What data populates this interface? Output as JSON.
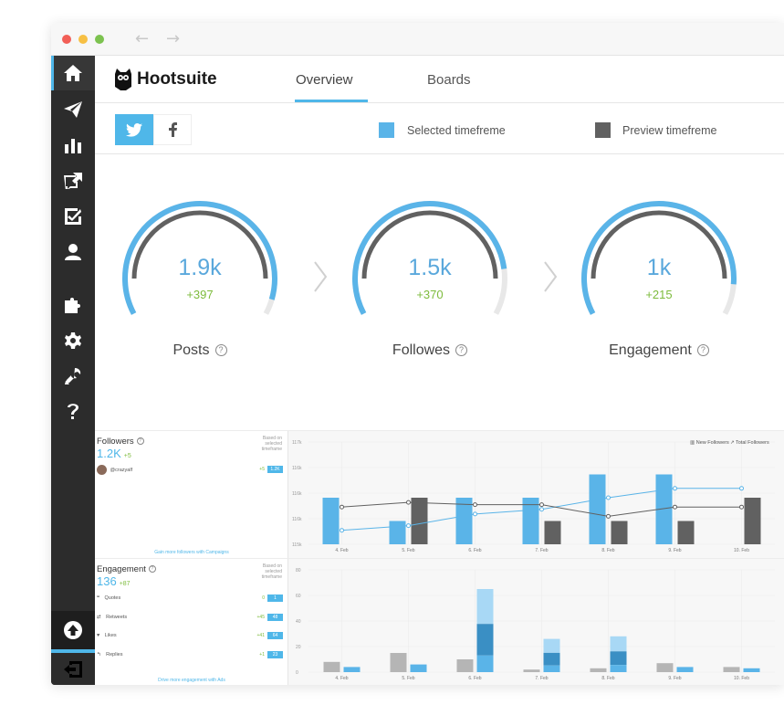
{
  "brand": {
    "name": "Hootsuite"
  },
  "tabs": [
    {
      "label": "Overview",
      "active": true
    },
    {
      "label": "Boards",
      "active": false
    }
  ],
  "networks": [
    "twitter-icon",
    "facebook-icon"
  ],
  "legend": {
    "selected": {
      "label": "Selected timefreme",
      "color": "#5ab4e8"
    },
    "preview": {
      "label": "Preview timefreme",
      "color": "#616161"
    }
  },
  "gauges": [
    {
      "value": "1.9k",
      "delta": "+397",
      "label": "Posts",
      "fill": 0.95
    },
    {
      "value": "1.5k",
      "delta": "+370",
      "label": "Followes",
      "fill": 0.85
    },
    {
      "value": "1k",
      "delta": "+215",
      "label": "Engagement",
      "fill": 0.9
    }
  ],
  "followers_card": {
    "title": "Followers",
    "sub": "Based on selected timeframe",
    "value": "1.2K",
    "delta": "+5",
    "user": {
      "handle": "@crazyalf",
      "delta": "+5",
      "count": "1.2K"
    },
    "footer": "Gain more followers with Campaigns"
  },
  "engagement_card": {
    "title": "Engagement",
    "sub": "Based on selected timeframe",
    "value": "136",
    "delta": "+87",
    "items": [
      {
        "label": "Quotes",
        "delta": "0",
        "count": "1"
      },
      {
        "label": "Retweets",
        "delta": "+45",
        "count": "48"
      },
      {
        "label": "Likes",
        "delta": "+41",
        "count": "64"
      },
      {
        "label": "Replies",
        "delta": "+1",
        "count": "23"
      }
    ],
    "footer": "Drive more engagement with Ads"
  },
  "chart_data": [
    {
      "type": "bar",
      "title": "",
      "legend": [
        "New Followers",
        "Total Followers"
      ],
      "categories": [
        "4. Feb",
        "5. Feb",
        "6. Feb",
        "7. Feb",
        "8. Feb",
        "9. Feb",
        "10. Feb"
      ],
      "y_ticks": [
        "117k",
        "116k",
        "116k",
        "116k",
        "115k"
      ],
      "ylim": [
        0,
        4
      ],
      "series": [
        {
          "name": "",
          "color": "#5ab4e8",
          "values": [
            2,
            1,
            2,
            2,
            3,
            3,
            0
          ]
        },
        {
          "name": "",
          "color": "#616161",
          "values": [
            0,
            2,
            0,
            1,
            1,
            1,
            2
          ]
        }
      ],
      "lines": [
        {
          "name": "",
          "color": "#5ab4e8",
          "values": [
            0.6,
            0.8,
            1.3,
            1.5,
            2.0,
            2.4,
            2.4
          ]
        },
        {
          "name": "",
          "color": "#616161",
          "values": [
            1.6,
            1.8,
            1.7,
            1.7,
            1.2,
            1.6,
            1.6
          ]
        }
      ]
    },
    {
      "type": "bar",
      "title": "",
      "categories": [
        "4. Feb",
        "5. Feb",
        "6. Feb",
        "7. Feb",
        "8. Feb",
        "9. Feb",
        "10. Feb"
      ],
      "y_ticks": [
        "80",
        "60",
        "40",
        "20",
        "0"
      ],
      "ylim": [
        0,
        80
      ],
      "series": [
        {
          "name": "",
          "color": "#b5b5b5",
          "values": [
            8,
            15,
            10,
            2,
            3,
            7,
            4
          ]
        },
        {
          "name": "",
          "color": "#5ab4e8",
          "values": [
            4,
            6,
            65,
            26,
            28,
            4,
            3
          ]
        }
      ]
    }
  ]
}
